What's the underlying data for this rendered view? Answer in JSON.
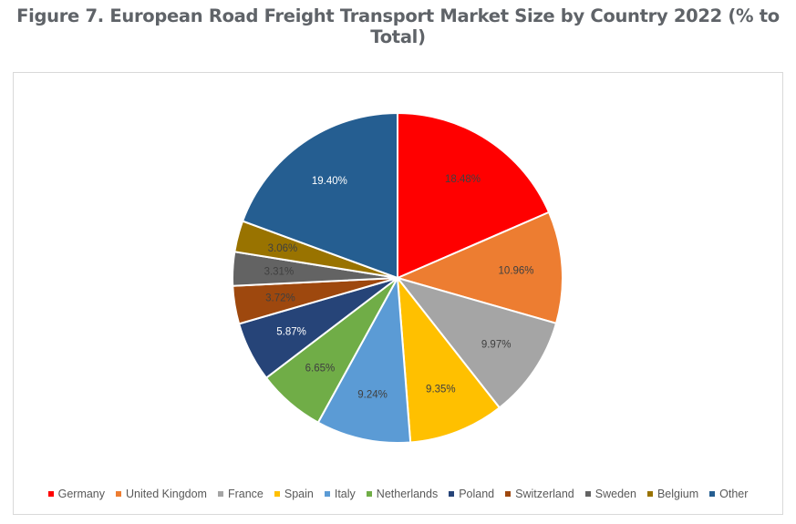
{
  "title": "Figure 7. European Road Freight Transport Market Size by Country 2022 (% to Total)",
  "chart_data": {
    "type": "pie",
    "title": "Figure 7. European Road Freight Transport Market Size by Country 2022 (% to Total)",
    "categories": [
      "Germany",
      "United Kingdom",
      "France",
      "Spain",
      "Italy",
      "Netherlands",
      "Poland",
      "Switzerland",
      "Sweden",
      "Belgium",
      "Other"
    ],
    "values": [
      18.48,
      10.96,
      9.97,
      9.35,
      9.24,
      6.65,
      5.87,
      3.72,
      3.31,
      3.06,
      19.4
    ],
    "labels": [
      "18.48%",
      "10.96%",
      "9.97%",
      "9.35%",
      "9.24%",
      "6.65%",
      "5.87%",
      "3.72%",
      "3.31%",
      "3.06%",
      "19.40%"
    ],
    "colors": [
      "#ff0000",
      "#ed7d31",
      "#a5a5a5",
      "#ffc000",
      "#5b9bd5",
      "#70ad47",
      "#264478",
      "#9e480e",
      "#636363",
      "#997300",
      "#255e91"
    ],
    "label_colors": [
      "#404040",
      "#404040",
      "#404040",
      "#404040",
      "#404040",
      "#404040",
      "#ffffff",
      "#404040",
      "#404040",
      "#404040",
      "#ffffff"
    ],
    "legend_position": "bottom",
    "start_angle": "12 o'clock, clockwise",
    "unit": "%"
  }
}
